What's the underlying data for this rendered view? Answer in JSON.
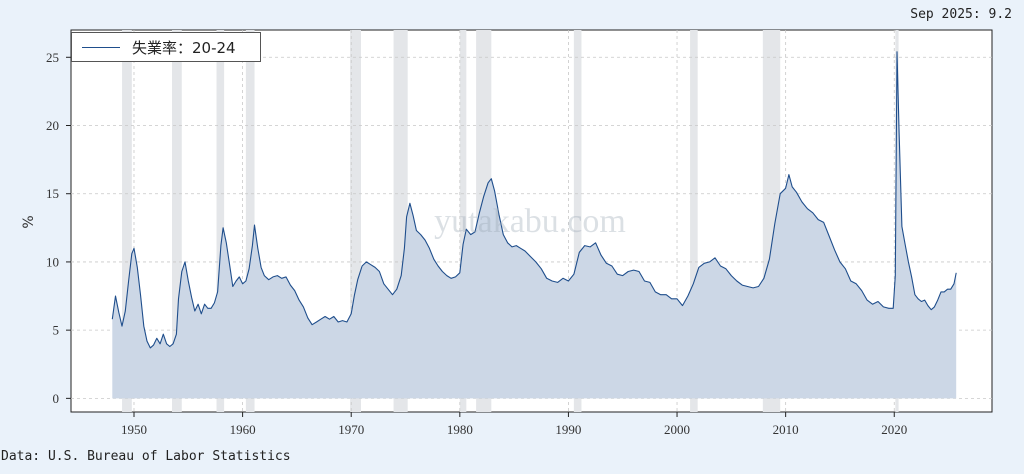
{
  "latest_label": "Sep 2025: 9.2",
  "source": "Data: U.S. Bureau of Labor Statistics",
  "watermark": "yutakabu.com",
  "colors": {
    "line": "#1f4e8c",
    "fill": "#ccd7e6",
    "recession": "#e4e6e9",
    "background": "#eaf2fa"
  },
  "chart_data": {
    "type": "area",
    "title": "",
    "xlabel": "",
    "ylabel": "%",
    "ylim": [
      -1,
      27
    ],
    "xlim": [
      1944.2,
      2029.0
    ],
    "yticks": [
      0,
      5,
      10,
      15,
      20,
      25
    ],
    "xticks": [
      1950,
      1960,
      1970,
      1980,
      1990,
      2000,
      2010,
      2020
    ],
    "grid": true,
    "legend": "top-left",
    "series": [
      {
        "name": "失業率：20-24",
        "points": [
          [
            1948.0,
            5.8
          ],
          [
            1948.3,
            7.5
          ],
          [
            1948.6,
            6.3
          ],
          [
            1948.9,
            5.3
          ],
          [
            1949.2,
            6.4
          ],
          [
            1949.5,
            8.6
          ],
          [
            1949.8,
            10.6
          ],
          [
            1950.0,
            11.0
          ],
          [
            1950.3,
            9.6
          ],
          [
            1950.6,
            7.6
          ],
          [
            1950.9,
            5.3
          ],
          [
            1951.2,
            4.2
          ],
          [
            1951.5,
            3.7
          ],
          [
            1951.8,
            3.9
          ],
          [
            1952.1,
            4.4
          ],
          [
            1952.4,
            4.0
          ],
          [
            1952.7,
            4.7
          ],
          [
            1953.0,
            4.0
          ],
          [
            1953.3,
            3.8
          ],
          [
            1953.6,
            4.0
          ],
          [
            1953.9,
            4.7
          ],
          [
            1954.1,
            7.3
          ],
          [
            1954.4,
            9.3
          ],
          [
            1954.7,
            10.0
          ],
          [
            1955.0,
            8.6
          ],
          [
            1955.3,
            7.4
          ],
          [
            1955.6,
            6.4
          ],
          [
            1955.9,
            6.9
          ],
          [
            1956.2,
            6.2
          ],
          [
            1956.5,
            6.9
          ],
          [
            1956.8,
            6.6
          ],
          [
            1957.1,
            6.6
          ],
          [
            1957.4,
            7.0
          ],
          [
            1957.7,
            7.8
          ],
          [
            1958.0,
            11.2
          ],
          [
            1958.2,
            12.5
          ],
          [
            1958.5,
            11.4
          ],
          [
            1958.8,
            9.8
          ],
          [
            1959.1,
            8.2
          ],
          [
            1959.4,
            8.6
          ],
          [
            1959.7,
            8.9
          ],
          [
            1960.0,
            8.4
          ],
          [
            1960.3,
            8.6
          ],
          [
            1960.6,
            9.5
          ],
          [
            1960.9,
            11.2
          ],
          [
            1961.1,
            12.7
          ],
          [
            1961.4,
            11.0
          ],
          [
            1961.7,
            9.6
          ],
          [
            1962.0,
            9.0
          ],
          [
            1962.4,
            8.7
          ],
          [
            1962.8,
            8.9
          ],
          [
            1963.2,
            9.0
          ],
          [
            1963.6,
            8.8
          ],
          [
            1964.0,
            8.9
          ],
          [
            1964.4,
            8.3
          ],
          [
            1964.8,
            7.9
          ],
          [
            1965.2,
            7.2
          ],
          [
            1965.6,
            6.7
          ],
          [
            1966.0,
            5.9
          ],
          [
            1966.4,
            5.4
          ],
          [
            1966.8,
            5.6
          ],
          [
            1967.2,
            5.8
          ],
          [
            1967.6,
            6.0
          ],
          [
            1968.0,
            5.8
          ],
          [
            1968.4,
            6.0
          ],
          [
            1968.8,
            5.6
          ],
          [
            1969.2,
            5.7
          ],
          [
            1969.6,
            5.6
          ],
          [
            1970.0,
            6.2
          ],
          [
            1970.3,
            7.6
          ],
          [
            1970.6,
            8.7
          ],
          [
            1971.0,
            9.7
          ],
          [
            1971.4,
            10.0
          ],
          [
            1971.8,
            9.8
          ],
          [
            1972.2,
            9.6
          ],
          [
            1972.6,
            9.3
          ],
          [
            1973.0,
            8.4
          ],
          [
            1973.4,
            8.0
          ],
          [
            1973.8,
            7.6
          ],
          [
            1974.2,
            8.0
          ],
          [
            1974.6,
            9.0
          ],
          [
            1974.9,
            11.0
          ],
          [
            1975.1,
            13.3
          ],
          [
            1975.4,
            14.3
          ],
          [
            1975.7,
            13.4
          ],
          [
            1976.0,
            12.3
          ],
          [
            1976.4,
            12.0
          ],
          [
            1976.8,
            11.6
          ],
          [
            1977.2,
            11.0
          ],
          [
            1977.6,
            10.2
          ],
          [
            1978.0,
            9.7
          ],
          [
            1978.4,
            9.3
          ],
          [
            1978.8,
            9.0
          ],
          [
            1979.2,
            8.8
          ],
          [
            1979.6,
            8.9
          ],
          [
            1980.0,
            9.2
          ],
          [
            1980.3,
            11.3
          ],
          [
            1980.6,
            12.4
          ],
          [
            1981.0,
            12.0
          ],
          [
            1981.4,
            12.2
          ],
          [
            1981.8,
            13.6
          ],
          [
            1982.2,
            14.8
          ],
          [
            1982.6,
            15.8
          ],
          [
            1982.9,
            16.1
          ],
          [
            1983.2,
            15.2
          ],
          [
            1983.6,
            13.5
          ],
          [
            1984.0,
            12.0
          ],
          [
            1984.4,
            11.4
          ],
          [
            1984.8,
            11.1
          ],
          [
            1985.2,
            11.2
          ],
          [
            1985.6,
            11.0
          ],
          [
            1986.0,
            10.8
          ],
          [
            1986.5,
            10.4
          ],
          [
            1987.0,
            10.0
          ],
          [
            1987.5,
            9.5
          ],
          [
            1988.0,
            8.8
          ],
          [
            1988.5,
            8.6
          ],
          [
            1989.0,
            8.5
          ],
          [
            1989.5,
            8.8
          ],
          [
            1990.0,
            8.6
          ],
          [
            1990.5,
            9.1
          ],
          [
            1991.0,
            10.7
          ],
          [
            1991.5,
            11.2
          ],
          [
            1992.0,
            11.1
          ],
          [
            1992.5,
            11.4
          ],
          [
            1993.0,
            10.5
          ],
          [
            1993.5,
            9.9
          ],
          [
            1994.0,
            9.7
          ],
          [
            1994.5,
            9.1
          ],
          [
            1995.0,
            9.0
          ],
          [
            1995.5,
            9.3
          ],
          [
            1996.0,
            9.4
          ],
          [
            1996.5,
            9.3
          ],
          [
            1997.0,
            8.6
          ],
          [
            1997.5,
            8.5
          ],
          [
            1998.0,
            7.8
          ],
          [
            1998.5,
            7.6
          ],
          [
            1999.0,
            7.6
          ],
          [
            1999.5,
            7.3
          ],
          [
            2000.0,
            7.3
          ],
          [
            2000.5,
            6.8
          ],
          [
            2001.0,
            7.5
          ],
          [
            2001.5,
            8.4
          ],
          [
            2002.0,
            9.6
          ],
          [
            2002.5,
            9.9
          ],
          [
            2003.0,
            10.0
          ],
          [
            2003.5,
            10.3
          ],
          [
            2004.0,
            9.7
          ],
          [
            2004.5,
            9.5
          ],
          [
            2005.0,
            9.0
          ],
          [
            2005.5,
            8.6
          ],
          [
            2006.0,
            8.3
          ],
          [
            2006.5,
            8.2
          ],
          [
            2007.0,
            8.1
          ],
          [
            2007.5,
            8.2
          ],
          [
            2008.0,
            8.8
          ],
          [
            2008.5,
            10.2
          ],
          [
            2009.0,
            12.8
          ],
          [
            2009.5,
            15.0
          ],
          [
            2010.0,
            15.4
          ],
          [
            2010.3,
            16.4
          ],
          [
            2010.6,
            15.5
          ],
          [
            2011.0,
            15.1
          ],
          [
            2011.5,
            14.4
          ],
          [
            2012.0,
            13.9
          ],
          [
            2012.5,
            13.6
          ],
          [
            2013.0,
            13.1
          ],
          [
            2013.5,
            12.9
          ],
          [
            2014.0,
            11.9
          ],
          [
            2014.5,
            10.9
          ],
          [
            2015.0,
            10.0
          ],
          [
            2015.5,
            9.5
          ],
          [
            2016.0,
            8.6
          ],
          [
            2016.5,
            8.4
          ],
          [
            2017.0,
            7.9
          ],
          [
            2017.5,
            7.2
          ],
          [
            2018.0,
            6.9
          ],
          [
            2018.5,
            7.1
          ],
          [
            2019.0,
            6.7
          ],
          [
            2019.5,
            6.6
          ],
          [
            2019.9,
            6.6
          ],
          [
            2020.1,
            9.0
          ],
          [
            2020.25,
            25.4
          ],
          [
            2020.45,
            19.5
          ],
          [
            2020.7,
            12.6
          ],
          [
            2021.0,
            11.3
          ],
          [
            2021.3,
            10.0
          ],
          [
            2021.6,
            8.9
          ],
          [
            2021.9,
            7.6
          ],
          [
            2022.2,
            7.3
          ],
          [
            2022.5,
            7.1
          ],
          [
            2022.8,
            7.2
          ],
          [
            2023.1,
            6.8
          ],
          [
            2023.4,
            6.5
          ],
          [
            2023.7,
            6.7
          ],
          [
            2024.0,
            7.2
          ],
          [
            2024.3,
            7.8
          ],
          [
            2024.6,
            7.8
          ],
          [
            2024.9,
            8.0
          ],
          [
            2025.2,
            8.0
          ],
          [
            2025.5,
            8.4
          ],
          [
            2025.7,
            9.2
          ]
        ]
      }
    ],
    "recessions": [
      [
        1948.9,
        1949.8
      ],
      [
        1953.5,
        1954.4
      ],
      [
        1957.6,
        1958.3
      ],
      [
        1960.3,
        1961.1
      ],
      [
        1969.9,
        1970.9
      ],
      [
        1973.9,
        1975.2
      ],
      [
        1980.0,
        1980.6
      ],
      [
        1981.5,
        1982.9
      ],
      [
        1990.5,
        1991.2
      ],
      [
        2001.2,
        2001.9
      ],
      [
        2007.9,
        2009.5
      ],
      [
        2020.1,
        2020.4
      ]
    ]
  },
  "legend_label": "失業率：20-24"
}
